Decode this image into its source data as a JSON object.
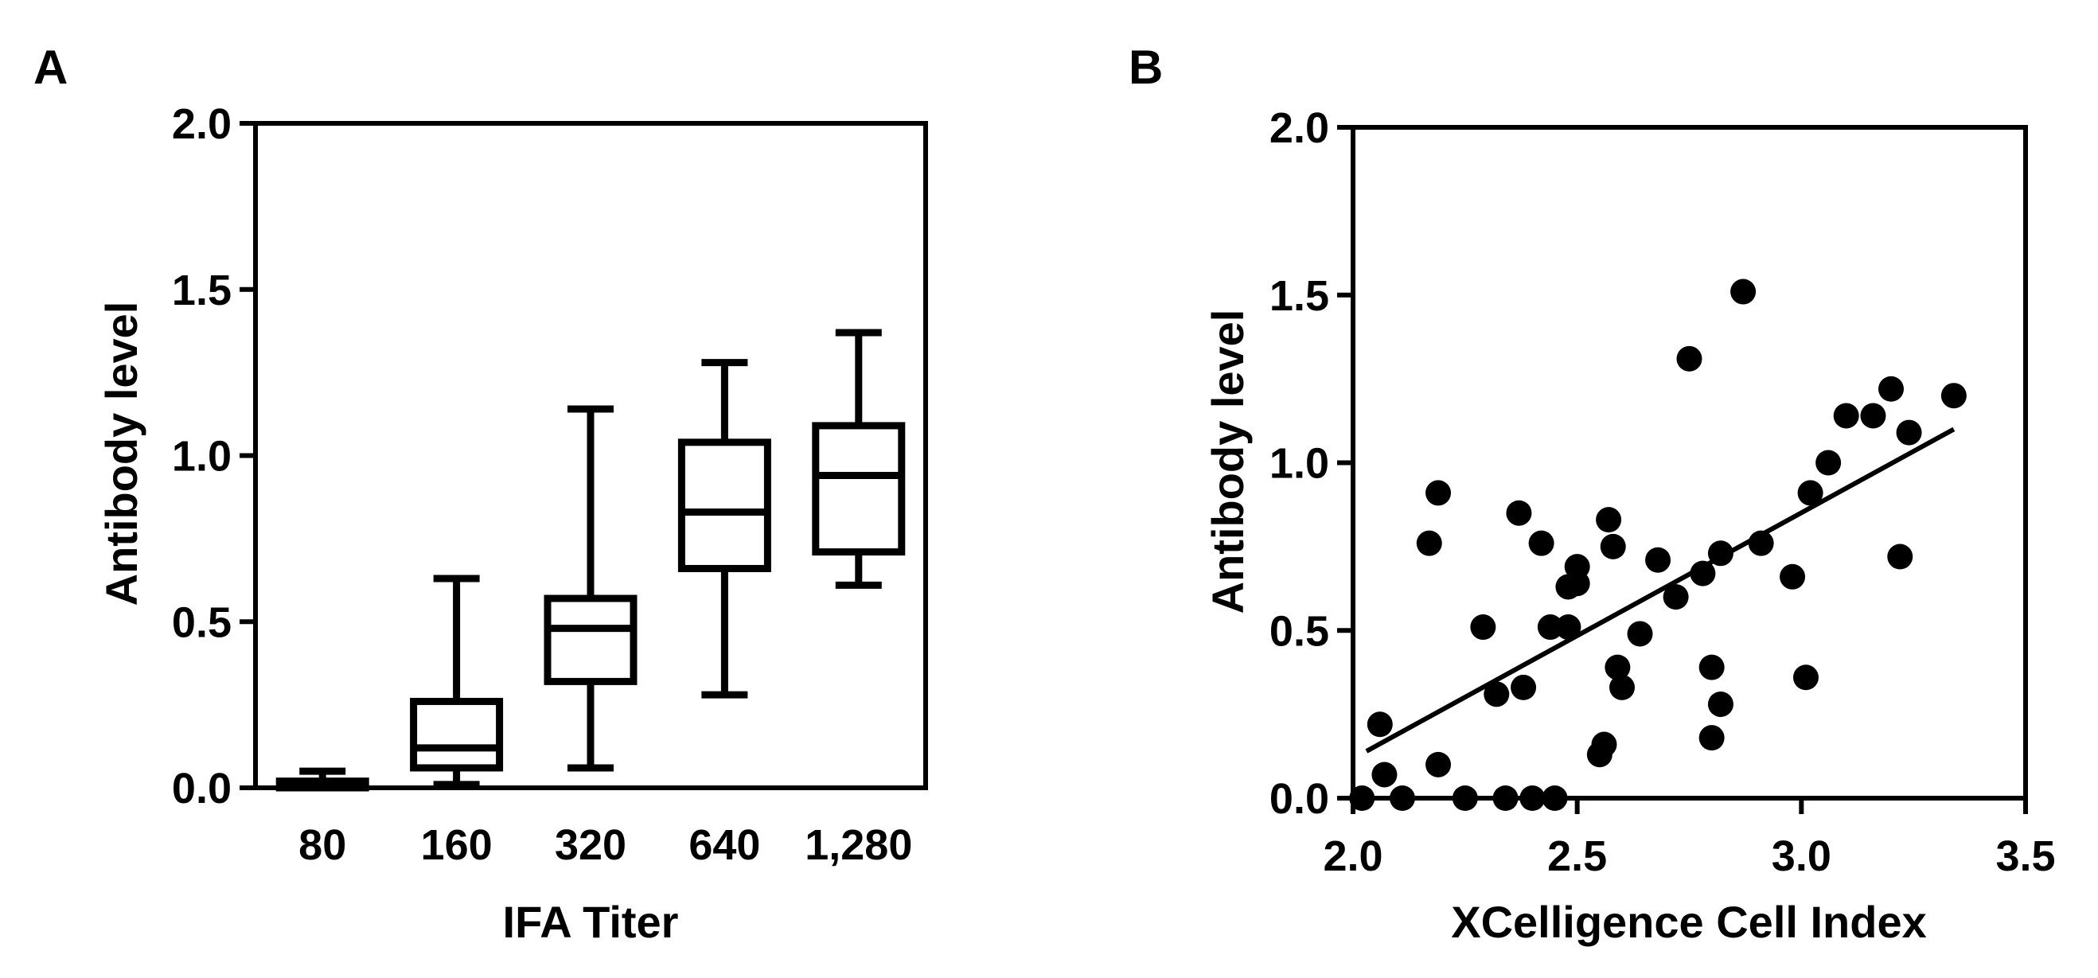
{
  "chart_data": [
    {
      "type": "box",
      "panel_label": "A",
      "title": "",
      "xlabel": "IFA Titer",
      "ylabel": "Antibody level",
      "ylim": [
        0,
        2.0
      ],
      "yticks": [
        0.0,
        0.5,
        1.0,
        1.5,
        2.0
      ],
      "ytick_labels": [
        "0.0",
        "0.5",
        "1.0",
        "1.5",
        "2.0"
      ],
      "categories": [
        "80",
        "160",
        "320",
        "640",
        "1,280"
      ],
      "boxes": [
        {
          "category": "80",
          "min": 0.0,
          "q1": 0.0,
          "median": 0.01,
          "q3": 0.02,
          "max": 0.05
        },
        {
          "category": "160",
          "min": 0.01,
          "q1": 0.06,
          "median": 0.12,
          "q3": 0.26,
          "max": 0.63
        },
        {
          "category": "320",
          "min": 0.06,
          "q1": 0.32,
          "median": 0.48,
          "q3": 0.57,
          "max": 1.14
        },
        {
          "category": "640",
          "min": 0.28,
          "q1": 0.66,
          "median": 0.83,
          "q3": 1.04,
          "max": 1.28
        },
        {
          "category": "1,280",
          "min": 0.61,
          "q1": 0.71,
          "median": 0.94,
          "q3": 1.09,
          "max": 1.37
        }
      ]
    },
    {
      "type": "scatter",
      "panel_label": "B",
      "title": "",
      "xlabel": "XCelligence Cell Index",
      "ylabel": "Antibody level",
      "xlim": [
        2.0,
        3.5
      ],
      "ylim": [
        0,
        2.0
      ],
      "xticks": [
        2.0,
        2.5,
        3.0,
        3.5
      ],
      "xtick_labels": [
        "2.0",
        "2.5",
        "3.0",
        "3.5"
      ],
      "yticks": [
        0.0,
        0.5,
        1.0,
        1.5,
        2.0
      ],
      "ytick_labels": [
        "0.0",
        "0.5",
        "1.0",
        "1.5",
        "2.0"
      ],
      "points": [
        {
          "x": 2.02,
          "y": 0.0
        },
        {
          "x": 2.06,
          "y": 0.22
        },
        {
          "x": 2.07,
          "y": 0.07
        },
        {
          "x": 2.11,
          "y": 0.0
        },
        {
          "x": 2.17,
          "y": 0.76
        },
        {
          "x": 2.19,
          "y": 0.91
        },
        {
          "x": 2.19,
          "y": 0.1
        },
        {
          "x": 2.25,
          "y": 0.0
        },
        {
          "x": 2.29,
          "y": 0.51
        },
        {
          "x": 2.32,
          "y": 0.31
        },
        {
          "x": 2.34,
          "y": 0.0
        },
        {
          "x": 2.37,
          "y": 0.85
        },
        {
          "x": 2.38,
          "y": 0.33
        },
        {
          "x": 2.4,
          "y": 0.0
        },
        {
          "x": 2.42,
          "y": 0.76
        },
        {
          "x": 2.44,
          "y": 0.51
        },
        {
          "x": 2.45,
          "y": 0.0
        },
        {
          "x": 2.48,
          "y": 0.51
        },
        {
          "x": 2.48,
          "y": 0.63
        },
        {
          "x": 2.5,
          "y": 0.64
        },
        {
          "x": 2.5,
          "y": 0.69
        },
        {
          "x": 2.55,
          "y": 0.13
        },
        {
          "x": 2.56,
          "y": 0.16
        },
        {
          "x": 2.57,
          "y": 0.83
        },
        {
          "x": 2.58,
          "y": 0.75
        },
        {
          "x": 2.59,
          "y": 0.39
        },
        {
          "x": 2.6,
          "y": 0.33
        },
        {
          "x": 2.64,
          "y": 0.49
        },
        {
          "x": 2.68,
          "y": 0.71
        },
        {
          "x": 2.72,
          "y": 0.6
        },
        {
          "x": 2.75,
          "y": 1.31
        },
        {
          "x": 2.78,
          "y": 0.67
        },
        {
          "x": 2.8,
          "y": 0.39
        },
        {
          "x": 2.8,
          "y": 0.18
        },
        {
          "x": 2.82,
          "y": 0.28
        },
        {
          "x": 2.82,
          "y": 0.73
        },
        {
          "x": 2.87,
          "y": 1.51
        },
        {
          "x": 2.91,
          "y": 0.76
        },
        {
          "x": 2.98,
          "y": 0.66
        },
        {
          "x": 3.01,
          "y": 0.36
        },
        {
          "x": 3.02,
          "y": 0.91
        },
        {
          "x": 3.06,
          "y": 1.0
        },
        {
          "x": 3.1,
          "y": 1.14
        },
        {
          "x": 3.16,
          "y": 1.14
        },
        {
          "x": 3.2,
          "y": 1.22
        },
        {
          "x": 3.22,
          "y": 0.72
        },
        {
          "x": 3.24,
          "y": 1.09
        },
        {
          "x": 3.34,
          "y": 1.2
        }
      ],
      "regression_line": {
        "x": [
          2.03,
          3.34
        ],
        "y": [
          0.14,
          1.1
        ]
      }
    }
  ]
}
